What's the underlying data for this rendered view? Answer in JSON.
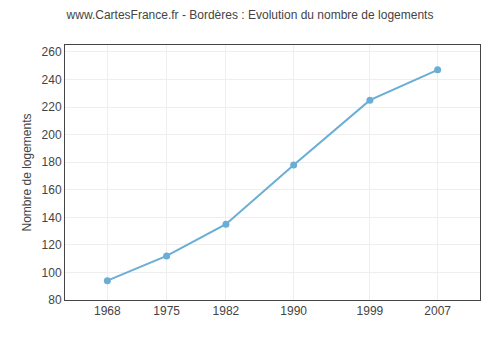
{
  "chart_data": {
    "type": "line",
    "title": "www.CartesFrance.fr - Bordères : Evolution du nombre de logements",
    "ylabel": "Nombre de logements",
    "x": [
      1968,
      1975,
      1982,
      1990,
      1999,
      2007
    ],
    "values": [
      94,
      112,
      135,
      178,
      225,
      247
    ],
    "color": "#6aaed6",
    "marker": "circle",
    "xlim": [
      1963,
      2012
    ],
    "xticks": [
      1968,
      1975,
      1982,
      1990,
      1999,
      2007
    ],
    "ylim": [
      80,
      265
    ],
    "yticks": [
      80,
      100,
      120,
      140,
      160,
      180,
      200,
      220,
      240,
      260
    ],
    "grid": true
  }
}
